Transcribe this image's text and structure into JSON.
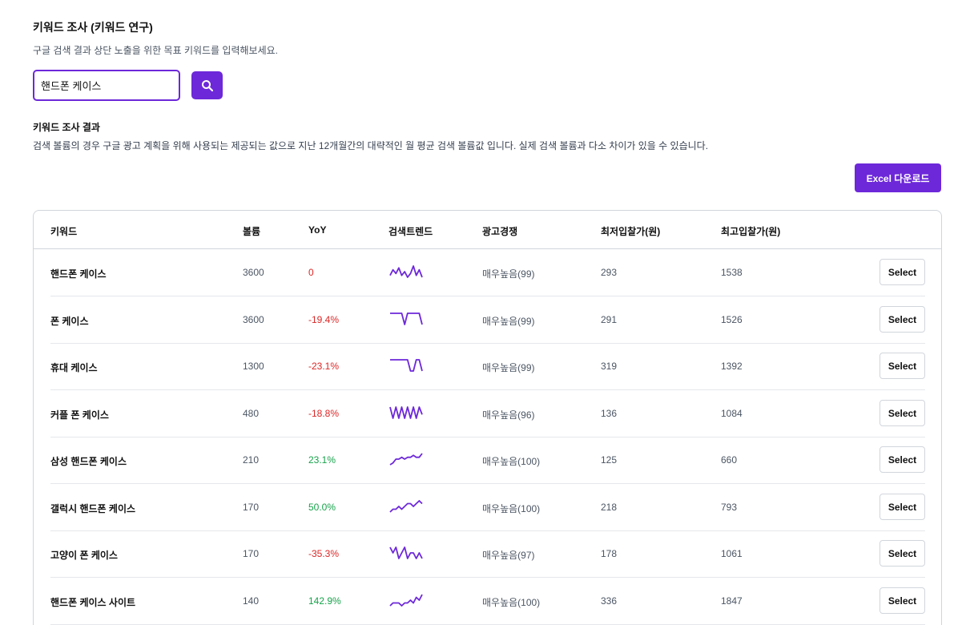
{
  "header": {
    "title": "키워드 조사 (키워드 연구)",
    "subtitle": "구글 검색 결과 상단 노출을 위한 목표 키워드를 입력해보세요."
  },
  "search": {
    "value": "핸드폰 케이스",
    "button_icon": "search-icon"
  },
  "results": {
    "title": "키워드 조사 결과",
    "description": "검색 볼륨의 경우 구글 광고 계획을 위해 사용되는 제공되는 값으로 지난 12개월간의 대략적인 월 평균 검색 볼륨값 입니다. 실제 검색 볼륨과 다소 차이가 있을 수 있습니다.",
    "excel_label": "Excel 다운로드"
  },
  "table": {
    "columns": [
      "키워드",
      "볼륨",
      "YoY",
      "검색트렌드",
      "광고경쟁",
      "최저입찰가(원)",
      "최고입찰가(원)"
    ],
    "select_label": "Select",
    "rows": [
      {
        "keyword": "핸드폰 케이스",
        "volume": "3600",
        "yoy": "0",
        "yoy_sign": "zero",
        "competition": "매우높음(99)",
        "min_bid": "293",
        "max_bid": "1538",
        "trend": [
          3,
          6,
          4,
          7,
          3,
          5,
          2,
          4,
          8,
          3,
          6,
          2
        ]
      },
      {
        "keyword": "폰 케이스",
        "volume": "3600",
        "yoy": "-19.4%",
        "yoy_sign": "neg",
        "competition": "매우높음(99)",
        "min_bid": "291",
        "max_bid": "1526",
        "trend": [
          8,
          8,
          8,
          8,
          8,
          1,
          8,
          8,
          8,
          8,
          8,
          1
        ]
      },
      {
        "keyword": "휴대 케이스",
        "volume": "1300",
        "yoy": "-23.1%",
        "yoy_sign": "neg",
        "competition": "매우높음(99)",
        "min_bid": "319",
        "max_bid": "1392",
        "trend": [
          8,
          8,
          8,
          8,
          8,
          8,
          8,
          0,
          0,
          8,
          8,
          0
        ]
      },
      {
        "keyword": "커플 폰 케이스",
        "volume": "480",
        "yoy": "-18.8%",
        "yoy_sign": "neg",
        "competition": "매우높음(96)",
        "min_bid": "136",
        "max_bid": "1084",
        "trend": [
          6,
          3,
          6,
          3,
          6,
          3,
          6,
          3,
          6,
          3,
          6,
          4
        ]
      },
      {
        "keyword": "삼성 핸드폰 케이스",
        "volume": "210",
        "yoy": "23.1%",
        "yoy_sign": "pos",
        "competition": "매우높음(100)",
        "min_bid": "125",
        "max_bid": "660",
        "trend": [
          1,
          2,
          4,
          4,
          5,
          4,
          5,
          5,
          6,
          5,
          5,
          7
        ]
      },
      {
        "keyword": "갤럭시 핸드폰 케이스",
        "volume": "170",
        "yoy": "50.0%",
        "yoy_sign": "pos",
        "competition": "매우높음(100)",
        "min_bid": "218",
        "max_bid": "793",
        "trend": [
          2,
          3,
          3,
          4,
          3,
          4,
          5,
          5,
          4,
          5,
          6,
          5
        ]
      },
      {
        "keyword": "고양이 폰 케이스",
        "volume": "170",
        "yoy": "-35.3%",
        "yoy_sign": "neg",
        "competition": "매우높음(97)",
        "min_bid": "178",
        "max_bid": "1061",
        "trend": [
          5,
          4,
          5,
          3,
          4,
          5,
          3,
          4,
          4,
          3,
          4,
          3
        ]
      },
      {
        "keyword": "핸드폰 케이스 사이트",
        "volume": "140",
        "yoy": "142.9%",
        "yoy_sign": "pos",
        "competition": "매우높음(100)",
        "min_bid": "336",
        "max_bid": "1847",
        "trend": [
          2,
          3,
          3,
          3,
          2,
          3,
          3,
          4,
          3,
          5,
          4,
          6
        ]
      }
    ]
  },
  "colors": {
    "accent": "#6d28d9",
    "negative": "#dc2626",
    "positive": "#16a34a"
  }
}
